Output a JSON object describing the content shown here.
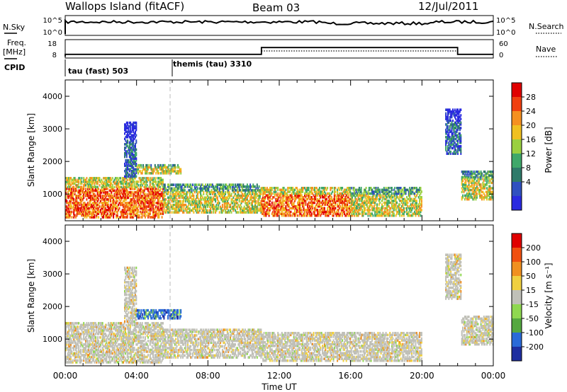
{
  "header": {
    "title": "Wallops Island (fitACF)",
    "beam": "Beam 03",
    "date": "12/Jul/2011"
  },
  "time_ticks": [
    "00:00",
    "04:00",
    "08:00",
    "12:00",
    "16:00",
    "20:00",
    "00:00"
  ],
  "xlabel": "Time UT",
  "nsky_panel": {
    "left_label": "N.Sky",
    "left_ticks": [
      "10^5",
      "10^0"
    ],
    "right_ticks": [
      "10^5",
      "10^0"
    ],
    "right_label": "N.Search"
  },
  "freq_panel": {
    "left_label_1": "Freq.",
    "left_label_2": "[MHz]",
    "left_ticks": [
      "18",
      "8"
    ],
    "right_ticks": [
      "60",
      "0"
    ],
    "right_label": "Nave"
  },
  "cpid_panel": {
    "label": "CPID",
    "segments": [
      {
        "label": "tau (fast) 503"
      },
      {
        "label": "themis (tau) 3310"
      }
    ]
  },
  "power_panel": {
    "ylabel": "Slant Range [km]",
    "yticks": [
      "4000",
      "3000",
      "2000",
      "1000"
    ],
    "colorbar_label": "Power [dB]",
    "colorbar_ticks": [
      "28",
      "24",
      "20",
      "16",
      "12",
      "8",
      "4"
    ]
  },
  "velocity_panel": {
    "ylabel": "Slant Range [km]",
    "yticks": [
      "4000",
      "3000",
      "2000",
      "1000"
    ],
    "colorbar_label": "Velocity [m s⁻¹]",
    "colorbar_ticks": [
      "200",
      "100",
      "50",
      "15",
      "-15",
      "-50",
      "-100",
      "-200"
    ]
  },
  "chart_data": {
    "type": "heatmap",
    "x_range_hours": [
      0,
      24
    ],
    "y_range_km": [
      180,
      4500
    ],
    "cpid_change_hour": 6.0,
    "freq_step": {
      "low_mhz": 10,
      "high_mhz": 16,
      "start_hour": 11.0,
      "end_hour": 22.0
    },
    "power_colors": [
      "#2a2ae0",
      "#3050c0",
      "#2f7a6a",
      "#3fa86a",
      "#9ad040",
      "#f0c020",
      "#f59020",
      "#f04010",
      "#e00000"
    ],
    "velocity_colors": [
      "#1e2ea0",
      "#2a6ad8",
      "#55a840",
      "#8fd850",
      "#c0c0b8",
      "#f0d040",
      "#f09020",
      "#f05010",
      "#e00000"
    ],
    "echo_regions": [
      {
        "t0": 0.0,
        "t1": 5.5,
        "r0": 250,
        "r1": 1500,
        "power": "high",
        "velocity": "gray"
      },
      {
        "t0": 3.3,
        "t1": 4.0,
        "r0": 1500,
        "r1": 3200,
        "power": "low",
        "velocity": "gray"
      },
      {
        "t0": 4.0,
        "t1": 6.5,
        "r0": 1600,
        "r1": 1900,
        "power": "mid",
        "velocity": "blue"
      },
      {
        "t0": 5.5,
        "t1": 11.0,
        "r0": 400,
        "r1": 1300,
        "power": "mid",
        "velocity": "gray"
      },
      {
        "t0": 11.0,
        "t1": 16.0,
        "r0": 300,
        "r1": 1200,
        "power": "high",
        "velocity": "gray"
      },
      {
        "t0": 16.0,
        "t1": 20.0,
        "r0": 300,
        "r1": 1200,
        "power": "mid",
        "velocity": "gray"
      },
      {
        "t0": 21.3,
        "t1": 22.2,
        "r0": 2200,
        "r1": 3600,
        "power": "low",
        "velocity": "gray"
      },
      {
        "t0": 22.2,
        "t1": 24.0,
        "r0": 800,
        "r1": 1700,
        "power": "mid",
        "velocity": "gray"
      }
    ]
  }
}
